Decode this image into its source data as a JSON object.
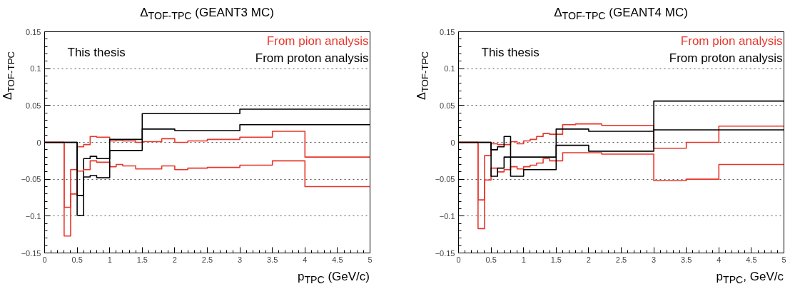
{
  "chart_data": [
    {
      "type": "step",
      "title": "Δ$_{TOF-TPC}$ (GEANT3 MC)",
      "xlabel": "p$_{TPC}$ (GeV/c)",
      "ylabel": "Δ$_{TOF-TPC}$",
      "xlim": [
        0,
        5
      ],
      "xticks": [
        0,
        0.5,
        1,
        1.5,
        2,
        2.5,
        3,
        3.5,
        4,
        4.5,
        5
      ],
      "ylim": [
        -0.15,
        0.15
      ],
      "yticks": [
        {
          "value": -0.15,
          "label": "−0.15"
        },
        {
          "value": -0.1,
          "label": "−0.1"
        },
        {
          "value": -0.05,
          "label": "−0.05"
        },
        0,
        0.05,
        0.1,
        0.15
      ],
      "grid": "y",
      "legend": "top right",
      "annotations": [
        "This thesis"
      ],
      "series": [
        {
          "name": "From pion analysis",
          "color": "#e8362a",
          "x": [
            0,
            0.3,
            0.4,
            0.5,
            0.6,
            0.7,
            0.8,
            1.0,
            1.1,
            1.2,
            1.4,
            1.5,
            1.8,
            2.0,
            2.2,
            2.5,
            3.0,
            3.5,
            4.0,
            5.0
          ],
          "values": [
            0,
            -0.088,
            -0.037,
            -0.006,
            -0.003,
            0.008,
            0.007,
            0.002,
            0.003,
            0.002,
            0,
            0.001,
            0.005,
            0,
            0.002,
            0.004,
            0.007,
            0.015,
            -0.02,
            -0.02
          ]
        },
        {
          "name": "From proton analysis",
          "color": "#000000",
          "x": [
            0,
            0.5,
            0.6,
            0.7,
            0.8,
            1.0,
            1.5,
            3.0,
            5.0
          ],
          "values": [
            0,
            -0.072,
            -0.022,
            -0.019,
            -0.022,
            0.004,
            0.039,
            0.045,
            0.045
          ]
        },
        {
          "color": "#e8362a",
          "x": [
            0,
            0.3,
            0.4,
            0.5,
            0.6,
            0.7,
            0.8,
            1.0,
            1.1,
            1.2,
            1.4,
            1.8,
            2.0,
            2.2,
            2.5,
            3.0,
            3.5,
            4.0,
            5.0
          ],
          "values": [
            0,
            -0.127,
            -0.07,
            -0.039,
            -0.037,
            -0.025,
            -0.027,
            -0.033,
            -0.03,
            -0.032,
            -0.036,
            -0.032,
            -0.037,
            -0.035,
            -0.034,
            -0.031,
            -0.025,
            -0.06,
            -0.06
          ]
        },
        {
          "color": "#000000",
          "x": [
            0,
            0.5,
            0.6,
            0.7,
            0.8,
            1.0,
            1.5,
            2.0,
            3.0,
            5.0
          ],
          "values": [
            0,
            -0.099,
            -0.047,
            -0.045,
            -0.048,
            -0.011,
            0.018,
            0.016,
            0.024,
            0.024
          ]
        }
      ]
    },
    {
      "type": "step",
      "title": "Δ$_{TOF-TPC}$ (GEANT4 MC)",
      "xlabel": "p$_{TPC}$, GeV/c",
      "ylabel": "Δ$_{TOF-TPC}$",
      "xlim": [
        0,
        5
      ],
      "xticks": [
        0,
        0.5,
        1,
        1.5,
        2,
        2.5,
        3,
        3.5,
        4,
        4.5,
        5
      ],
      "ylim": [
        -0.15,
        0.15
      ],
      "yticks": [
        {
          "value": -0.15,
          "label": "−0.15"
        },
        {
          "value": -0.1,
          "label": "−0.1"
        },
        {
          "value": -0.05,
          "label": "−0.05"
        },
        0,
        0.05,
        0.1,
        0.15
      ],
      "grid": "y",
      "legend": "top right",
      "annotations": [
        "This thesis"
      ],
      "series": [
        {
          "name": "From pion analysis",
          "color": "#e8362a",
          "x": [
            0,
            0.3,
            0.4,
            0.5,
            0.6,
            0.8,
            0.9,
            1.0,
            1.1,
            1.2,
            1.3,
            1.4,
            1.6,
            1.8,
            2.2,
            3.0,
            3.5,
            4.0,
            5.0
          ],
          "values": [
            0,
            -0.078,
            -0.018,
            -0.002,
            -0.003,
            0.001,
            -0.002,
            0.002,
            0.004,
            0.008,
            0.012,
            0.011,
            0.024,
            0.025,
            0.023,
            -0.008,
            0,
            0.022,
            0.022
          ]
        },
        {
          "name": "From proton analysis",
          "color": "#000000",
          "x": [
            0,
            0.5,
            0.6,
            0.7,
            0.8,
            1.0,
            1.5,
            2.0,
            3.0,
            5.0
          ],
          "values": [
            0,
            -0.01,
            -0.006,
            0.008,
            -0.02,
            -0.02,
            0.018,
            0.015,
            0.056,
            0.056
          ]
        },
        {
          "color": "#e8362a",
          "x": [
            0,
            0.3,
            0.4,
            0.5,
            0.6,
            0.7,
            0.8,
            0.9,
            1.0,
            1.1,
            1.2,
            1.3,
            1.4,
            1.6,
            2.2,
            3.0,
            3.5,
            4.0,
            5.0
          ],
          "values": [
            0,
            -0.117,
            -0.051,
            -0.035,
            -0.04,
            -0.037,
            -0.033,
            -0.036,
            -0.033,
            -0.031,
            -0.028,
            -0.022,
            -0.025,
            -0.014,
            -0.016,
            -0.052,
            -0.05,
            -0.03,
            -0.03
          ]
        },
        {
          "color": "#000000",
          "x": [
            0,
            0.5,
            0.6,
            0.7,
            0.8,
            1.0,
            1.5,
            2.0,
            3.0,
            5.0
          ],
          "values": [
            0,
            -0.046,
            -0.035,
            -0.02,
            -0.046,
            -0.037,
            -0.004,
            -0.012,
            0.017,
            0.017
          ]
        }
      ]
    }
  ]
}
